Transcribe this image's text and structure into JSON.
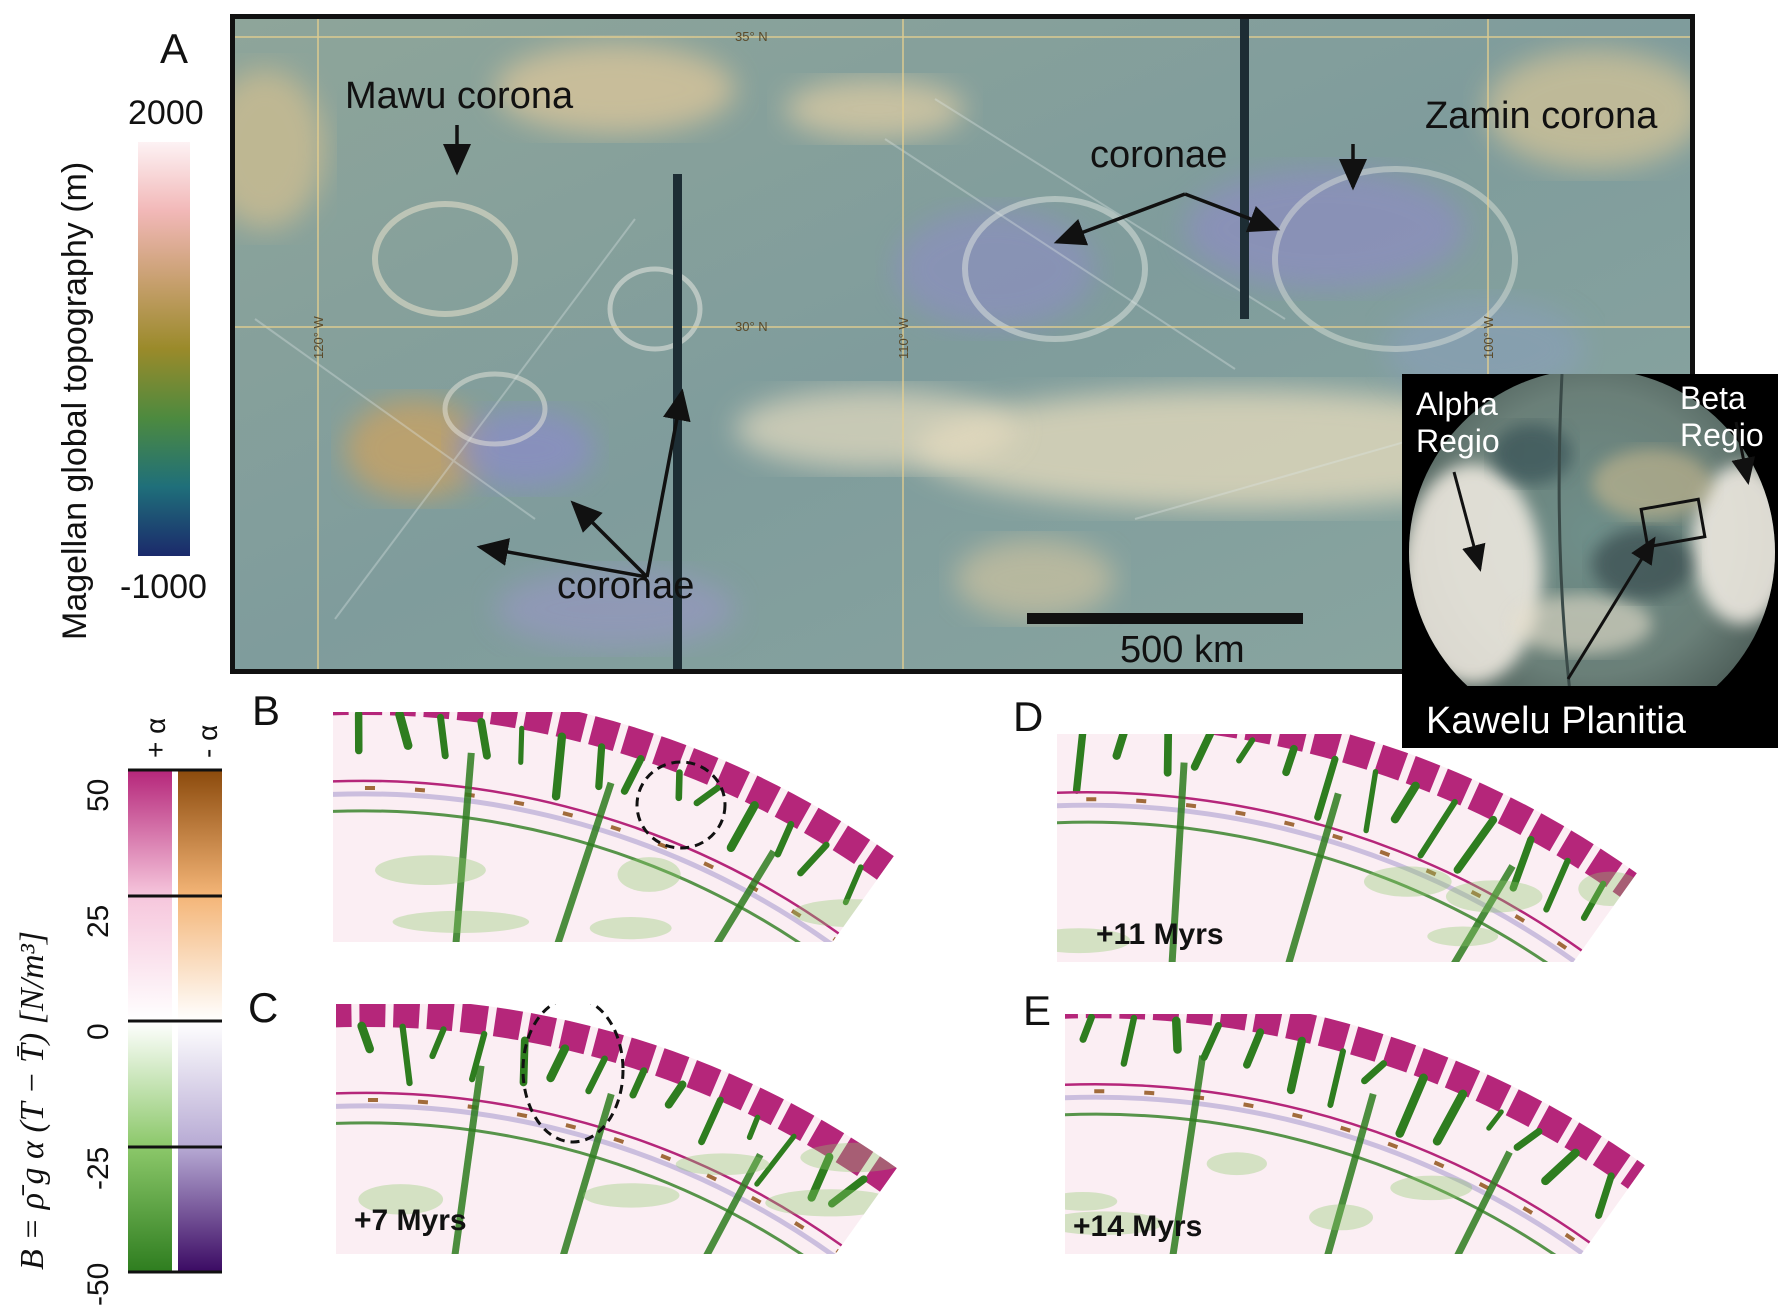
{
  "panels": {
    "A": "A",
    "B": "B",
    "C": "C",
    "D": "D",
    "E": "E"
  },
  "topo_colorbar": {
    "label": "Magellan global topography (m)",
    "max_label": "2000",
    "min_label": "-1000",
    "colors": [
      "#1b2a6b",
      "#1f6f7a",
      "#4d8a3f",
      "#9a8a2a",
      "#c8a070",
      "#f2b8b8",
      "#fdf2f4"
    ]
  },
  "map": {
    "annotations": {
      "mawu": "Mawu corona",
      "zamin": "Zamin corona",
      "coronae_top": "coronae",
      "coronae_bottom": "coronae",
      "scale": "500 km"
    },
    "grid_labels": {
      "lat_35": "35° N",
      "lat_30": "30° N",
      "lon_120": "120° W",
      "lon_110": "110° W",
      "lon_100": "100° W"
    }
  },
  "inset": {
    "alpha": [
      "Alpha",
      "Regio"
    ],
    "beta": [
      "Beta",
      "Regio"
    ],
    "kawelu": "Kawelu Planitia"
  },
  "buoyancy_colorbar": {
    "label": "B = ρ̄ g α (T − T̄) [N/m³]",
    "plus_alpha": "+ α",
    "minus_alpha": "- α",
    "ticks": [
      "50",
      "25",
      "0",
      "-25",
      "-50"
    ],
    "plus_colors": [
      "#2e7d1f",
      "#8cc86a",
      "#ffffff",
      "#f6c6dc",
      "#b5267a"
    ],
    "minus_colors": [
      "#3b0a63",
      "#b7aad4",
      "#ffffff",
      "#f4b577",
      "#8b4a0c"
    ]
  },
  "simulation_times": {
    "C": "+7 Myrs",
    "D": "+11 Myrs",
    "E": "+14 Myrs"
  }
}
